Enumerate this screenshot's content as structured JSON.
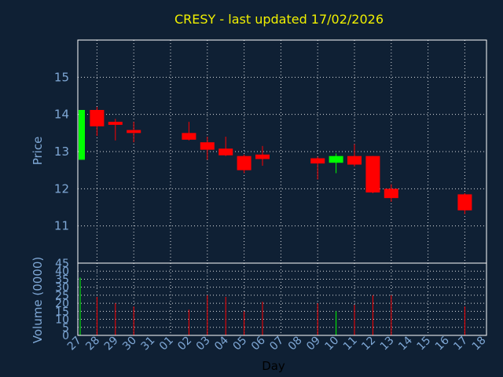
{
  "chart_data": {
    "type": "candlestick",
    "title": "CRESY - last updated 17/02/2026",
    "ylabel": "Price",
    "vol_label": "Volume (0000)",
    "xlabel": "Day",
    "ylim": [
      10,
      16
    ],
    "vol_ylim": [
      0,
      45
    ],
    "price_ticks": [
      "11",
      "12",
      "13",
      "14",
      "15"
    ],
    "vol_ticks": [
      "0",
      "5",
      "10",
      "15",
      "20",
      "25",
      "30",
      "35",
      "40",
      "45"
    ],
    "x_labels": [
      "27",
      "28",
      "29",
      "30",
      "31",
      "01",
      "02",
      "03",
      "04",
      "05",
      "06",
      "07",
      "08",
      "09",
      "10",
      "11",
      "12",
      "13",
      "14",
      "15",
      "16",
      "17",
      "18"
    ],
    "up_color": "#00ff00",
    "down_color": "#ff0000",
    "candles": [
      {
        "x": 0,
        "open": 12.78,
        "high": 14.12,
        "low": 12.78,
        "close": 14.12,
        "volume": 36
      },
      {
        "x": 1,
        "open": 14.12,
        "high": 14.2,
        "low": 13.42,
        "close": 13.68,
        "volume": 24
      },
      {
        "x": 2,
        "open": 13.8,
        "high": 13.88,
        "low": 13.3,
        "close": 13.72,
        "volume": 20
      },
      {
        "x": 3,
        "open": 13.58,
        "high": 13.8,
        "low": 13.25,
        "close": 13.5,
        "volume": 18
      },
      {
        "x": 6,
        "open": 13.5,
        "high": 13.8,
        "low": 13.3,
        "close": 13.32,
        "volume": 16
      },
      {
        "x": 7,
        "open": 13.25,
        "high": 13.4,
        "low": 12.78,
        "close": 13.05,
        "volume": 25
      },
      {
        "x": 8,
        "open": 13.08,
        "high": 13.4,
        "low": 12.88,
        "close": 12.9,
        "volume": 24
      },
      {
        "x": 9,
        "open": 12.88,
        "high": 12.92,
        "low": 12.42,
        "close": 12.5,
        "volume": 15
      },
      {
        "x": 10,
        "open": 12.92,
        "high": 13.15,
        "low": 12.62,
        "close": 12.8,
        "volume": 21
      },
      {
        "x": 13,
        "open": 12.82,
        "high": 12.86,
        "low": 12.25,
        "close": 12.68,
        "volume": 20
      },
      {
        "x": 14,
        "open": 12.7,
        "high": 12.95,
        "low": 12.42,
        "close": 12.88,
        "volume": 15
      },
      {
        "x": 15,
        "open": 12.88,
        "high": 13.2,
        "low": 12.6,
        "close": 12.65,
        "volume": 19
      },
      {
        "x": 16,
        "open": 12.88,
        "high": 12.88,
        "low": 11.88,
        "close": 11.9,
        "volume": 25
      },
      {
        "x": 17,
        "open": 12.0,
        "high": 12.12,
        "low": 11.65,
        "close": 11.75,
        "volume": 25
      },
      {
        "x": 21,
        "open": 11.85,
        "high": 11.88,
        "low": 11.32,
        "close": 11.42,
        "volume": 18
      }
    ]
  }
}
